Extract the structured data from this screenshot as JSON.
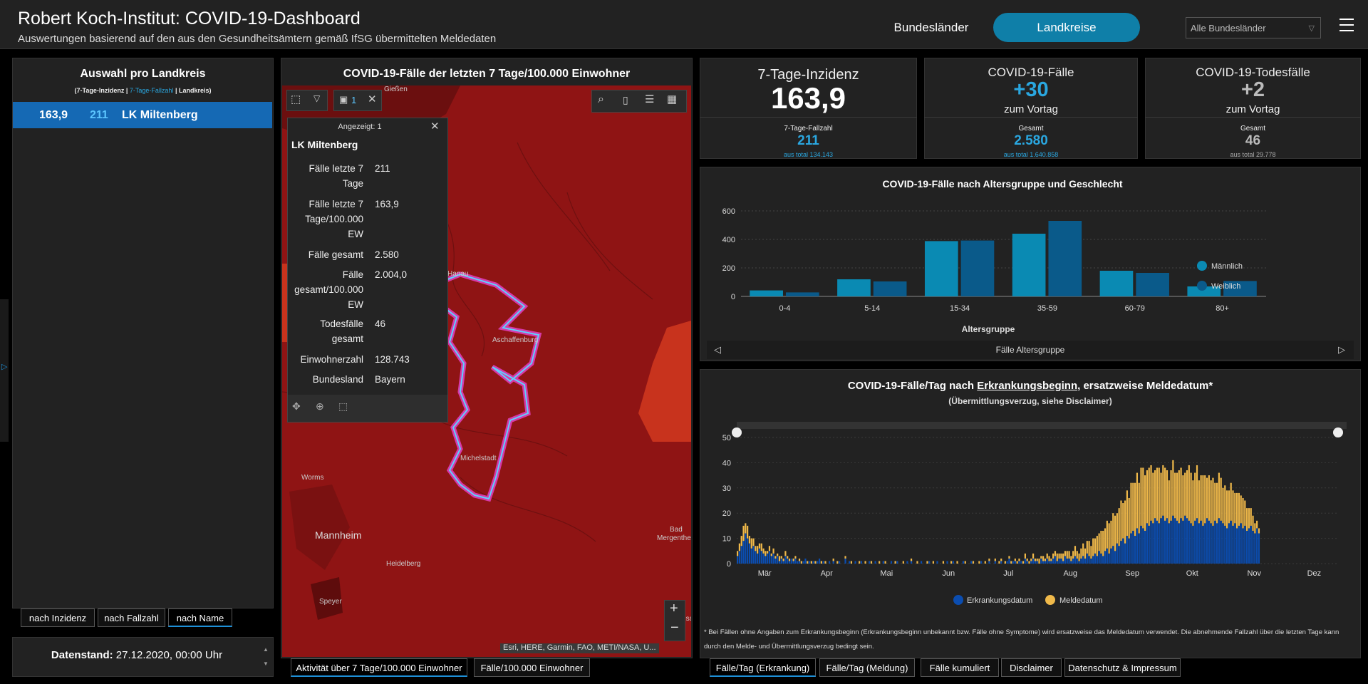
{
  "header": {
    "title": "Robert Koch-Institut: COVID-19-Dashboard",
    "subtitle": "Auswertungen basierend auf den aus den Gesundheitsämtern gemäß IfSG übermittelten Meldedaten",
    "nav_states": "Bundesländer",
    "nav_districts": "Landkreise",
    "state_select": "Alle Bundesländer"
  },
  "left": {
    "title": "Auswahl pro Landkreis",
    "legend_a": "(7-Tage-Inzidenz |",
    "legend_b": "7-Tage-Fallzahl",
    "legend_c": "| Landkreis)",
    "row_incidence": "163,9",
    "row_cases": "211",
    "row_name": "LK Miltenberg",
    "sort_incidence": "nach Inzidenz",
    "sort_cases": "nach Fallzahl",
    "sort_name": "nach Name",
    "status_label": "Datenstand:",
    "status_value": "27.12.2020, 00:00 Uhr"
  },
  "map": {
    "title": "COVID-19-Fälle der letzten 7 Tage/100.000 Einwohner",
    "selection_count": "1",
    "attribution": "Esri, HERE, Garmin, FAO, METI/NASA, U...",
    "tab_activity": "Aktivität über 7 Tage/100.000 Einwohner",
    "tab_cases": "Fälle/100.000 Einwohner",
    "places": {
      "giessen": "Gießen",
      "hanau": "Hanau",
      "aschaffenburg": "Aschaffenburg",
      "michelstadt": "Michelstadt",
      "worms": "Worms",
      "mannheim": "Mannheim",
      "heidelberg": "Heidelberg",
      "speyer": "Speyer",
      "bad": "Bad",
      "mergentheim": "Mergenthe",
      "kuenzelsau": "Künzelsa"
    },
    "popup": {
      "header": "Angezeigt: 1",
      "name": "LK Miltenberg",
      "rows": [
        {
          "k": "Fälle letzte 7 Tage",
          "v": "211"
        },
        {
          "k": "Fälle letzte 7 Tage/100.000 EW",
          "v": "163,9"
        },
        {
          "k": "Fälle gesamt",
          "v": "2.580"
        },
        {
          "k": "Fälle gesamt/100.000 EW",
          "v": "2.004,0"
        },
        {
          "k": "Todesfälle gesamt",
          "v": "46"
        },
        {
          "k": "Einwohnerzahl",
          "v": "128.743"
        },
        {
          "k": "Bundesland",
          "v": "Bayern"
        }
      ]
    }
  },
  "kpi": {
    "inc_title": "7-Tage-Inzidenz",
    "inc_value": "163,9",
    "inc_sub": "7-Tage-Fallzahl",
    "inc_sub_value": "211",
    "inc_total": "aus total 134.143",
    "cases_title": "COVID-19-Fälle",
    "cases_delta": "+30",
    "cases_note": "zum Vortag",
    "cases_sub": "Gesamt",
    "cases_total": "2.580",
    "cases_total_all": "aus total 1.640.858",
    "deaths_title": "COVID-19-Todesfälle",
    "deaths_delta": "+2",
    "deaths_note": "zum Vortag",
    "deaths_sub": "Gesamt",
    "deaths_total": "46",
    "deaths_total_all": "aus total 29.778"
  },
  "age_chart": {
    "title": "COVID-19-Fälle nach Altersgruppe und Geschlecht",
    "xlabel": "Altersgruppe",
    "footer": "Fälle Altersgruppe",
    "legend_m": "Männlich",
    "legend_f": "Weiblich"
  },
  "daily_chart": {
    "title_a": "COVID-19-Fälle/Tag nach ",
    "title_b": "Erkrankungsbeginn",
    "title_c": ", ersatzweise Meldedatum*",
    "subtitle": "(Übermittlungsverzug, siehe Disclaimer)",
    "legend_onset": "Erkrankungsdatum",
    "legend_report": "Meldedatum",
    "disclaimer": "* Bei Fällen ohne Angaben zum Erkrankungsbeginn (Erkrankungsbeginn unbekannt bzw. Fälle ohne Symptome) wird ersatzweise das Meldedatum verwendet. Die abnehmende Fallzahl über die letzten Tage kann durch den Melde- und Übermittlungsverzug bedingt sein."
  },
  "bottom_tabs": [
    "Fälle/Tag (Erkrankung)",
    "Fälle/Tag (Meldung)",
    "Fälle kumuliert",
    "Disclaimer",
    "Datenschutz & Impressum"
  ],
  "colors": {
    "accent": "#0f7fa8",
    "male": "#0a8ab3",
    "female": "#0a5a8a",
    "onset": "#0b4db0",
    "report": "#f0b94a",
    "map_fill": "#8f1414",
    "highlight": "#5fd0ff"
  },
  "chart_data": [
    {
      "type": "bar",
      "title": "COVID-19-Fälle nach Altersgruppe und Geschlecht",
      "xlabel": "Altersgruppe",
      "ylabel": "",
      "categories": [
        "0-4",
        "5-14",
        "15-34",
        "35-59",
        "60-79",
        "80+"
      ],
      "ylim": [
        0,
        600
      ],
      "yticks": [
        0,
        200,
        400,
        600
      ],
      "series": [
        {
          "name": "Männlich",
          "values": [
            42,
            120,
            388,
            440,
            180,
            70
          ]
        },
        {
          "name": "Weiblich",
          "values": [
            28,
            105,
            392,
            530,
            165,
            108
          ]
        }
      ],
      "legend": "right"
    },
    {
      "type": "bar",
      "title": "COVID-19-Fälle/Tag nach Erkrankungsbeginn, ersatzweise Meldedatum*",
      "x_range": [
        "2020-03-01",
        "2020-12-26"
      ],
      "xticks": [
        "Mär",
        "Apr",
        "Mai",
        "Jun",
        "Jul",
        "Aug",
        "Sep",
        "Okt",
        "Nov",
        "Dez"
      ],
      "ylim": [
        0,
        50
      ],
      "yticks": [
        0,
        10,
        20,
        30,
        40,
        50
      ],
      "stacked": true,
      "legend": "bottom",
      "series": [
        {
          "name": "Erkrankungsdatum",
          "start": "2020-03-01",
          "values": [
            3,
            5,
            7,
            9,
            12,
            10,
            8,
            6,
            7,
            5,
            4,
            6,
            5,
            4,
            3,
            4,
            5,
            3,
            4,
            2,
            3,
            1,
            2,
            1,
            3,
            2,
            1,
            2,
            1,
            2,
            1,
            1,
            0,
            1,
            2,
            0,
            1,
            0,
            1,
            0,
            1,
            2,
            0,
            1,
            0,
            0,
            1,
            0,
            1,
            0,
            0,
            1,
            0,
            0,
            2,
            0,
            1,
            0,
            0,
            1,
            0,
            0,
            1,
            0,
            0,
            0,
            1,
            0,
            0,
            1,
            0,
            0,
            0,
            1,
            0,
            0,
            0,
            1,
            0,
            0,
            1,
            0,
            0,
            0,
            0,
            1,
            0,
            1,
            0,
            0,
            0,
            0,
            1,
            0,
            0,
            0,
            1,
            0,
            0,
            0,
            1,
            0,
            0,
            0,
            0,
            1,
            0,
            0,
            1,
            0,
            0,
            0,
            0,
            1,
            0,
            0,
            0,
            1,
            0,
            0,
            0,
            0,
            1,
            0,
            0,
            0,
            1,
            0,
            0,
            1,
            0,
            0,
            1,
            0,
            0,
            1,
            2,
            0,
            1,
            1,
            0,
            1,
            1,
            0,
            2,
            1,
            0,
            1,
            2,
            1,
            1,
            0,
            2,
            1,
            1,
            2,
            1,
            1,
            2,
            3,
            1,
            2,
            2,
            1,
            3,
            2,
            2,
            1,
            2,
            3,
            2,
            1,
            2,
            3,
            2,
            4,
            3,
            2,
            3,
            4,
            3,
            5,
            4,
            3,
            5,
            6,
            4,
            6,
            7,
            5,
            8,
            7,
            9,
            10,
            8,
            11,
            10,
            12,
            13,
            11,
            14,
            12,
            15,
            14,
            13,
            16,
            15,
            17,
            16,
            18,
            17,
            16,
            18,
            19,
            17,
            18,
            16,
            17,
            19,
            18,
            17,
            16,
            18,
            17,
            19,
            18,
            17,
            16,
            15,
            17,
            18,
            16,
            17,
            15,
            16,
            18,
            17,
            16,
            15,
            17,
            16,
            18,
            17,
            16,
            15,
            14,
            16,
            17,
            15,
            16,
            14,
            15,
            16,
            14,
            15,
            13,
            14,
            15,
            13,
            12,
            14,
            12,
            11,
            10,
            9,
            8,
            6,
            4,
            3
          ]
        },
        {
          "name": "Meldedatum",
          "start": "2020-03-01",
          "values": [
            2,
            3,
            4,
            6,
            4,
            5,
            3,
            4,
            3,
            2,
            3,
            2,
            3,
            2,
            2,
            1,
            2,
            1,
            2,
            1,
            1,
            2,
            1,
            1,
            2,
            1,
            1,
            0,
            1,
            1,
            0,
            1,
            1,
            0,
            0,
            1,
            0,
            1,
            0,
            1,
            0,
            0,
            1,
            0,
            1,
            0,
            0,
            0,
            1,
            0,
            1,
            0,
            0,
            0,
            1,
            0,
            0,
            1,
            0,
            0,
            0,
            1,
            0,
            0,
            1,
            0,
            0,
            1,
            0,
            0,
            0,
            1,
            0,
            0,
            1,
            0,
            0,
            0,
            0,
            1,
            0,
            0,
            0,
            1,
            0,
            0,
            0,
            1,
            0,
            0,
            1,
            0,
            0,
            0,
            0,
            1,
            0,
            0,
            1,
            0,
            0,
            0,
            0,
            1,
            0,
            0,
            0,
            1,
            0,
            0,
            1,
            0,
            0,
            0,
            1,
            0,
            0,
            0,
            1,
            0,
            0,
            1,
            0,
            0,
            1,
            0,
            1,
            0,
            0,
            1,
            0,
            1,
            1,
            0,
            1,
            0,
            1,
            1,
            0,
            1,
            1,
            1,
            0,
            1,
            2,
            1,
            1,
            1,
            2,
            1,
            1,
            2,
            1,
            2,
            1,
            2,
            2,
            1,
            2,
            2,
            3,
            2,
            2,
            3,
            2,
            3,
            3,
            2,
            3,
            4,
            3,
            3,
            4,
            5,
            4,
            5,
            6,
            5,
            7,
            6,
            8,
            7,
            9,
            10,
            9,
            11,
            12,
            11,
            13,
            14,
            12,
            15,
            16,
            14,
            17,
            18,
            16,
            20,
            19,
            21,
            22,
            20,
            23,
            24,
            22,
            21,
            23,
            22,
            20,
            19,
            21,
            22,
            18,
            20,
            21,
            19,
            17,
            20,
            22,
            18,
            19,
            21,
            20,
            18,
            17,
            19,
            22,
            20,
            18,
            19,
            21,
            17,
            18,
            20,
            19,
            16,
            18,
            17,
            19,
            15,
            16,
            18,
            17,
            14,
            16,
            15,
            13,
            15,
            14,
            12,
            14,
            13,
            11,
            12,
            10,
            9,
            8,
            7,
            6,
            4,
            3,
            2
          ]
        }
      ]
    }
  ]
}
